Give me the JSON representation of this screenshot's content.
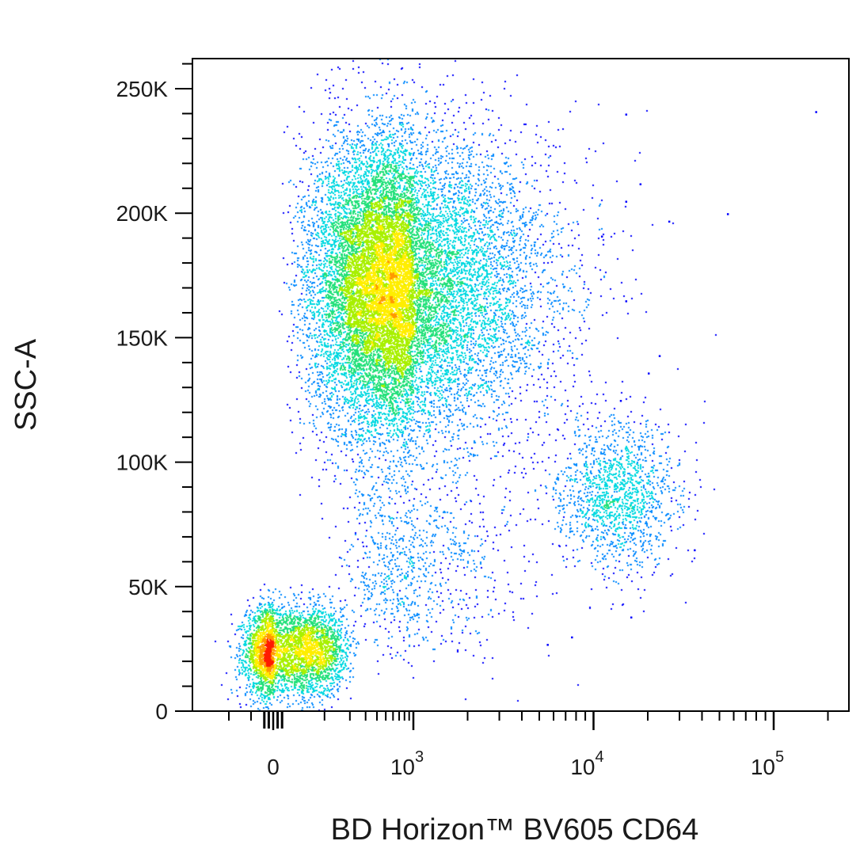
{
  "chart_data": {
    "type": "scatter",
    "style": "flow cytometry pseudocolor density dot plot",
    "title": "",
    "xlabel": "BD Horizon™ BV605 CD64",
    "ylabel": "SSC-A",
    "x_scale": "biexponential",
    "y_scale": "linear",
    "xlim": [
      -300,
      200000
    ],
    "ylim": [
      0,
      262144
    ],
    "grid": false,
    "legend": "none",
    "x_ticks": [
      {
        "value": 0,
        "base": "0",
        "exp": ""
      },
      {
        "value": 1000,
        "base": "10",
        "exp": "3"
      },
      {
        "value": 10000,
        "base": "10",
        "exp": "4"
      },
      {
        "value": 100000,
        "base": "10",
        "exp": "5"
      }
    ],
    "y_ticks": [
      {
        "value": 0,
        "label": "0"
      },
      {
        "value": 50000,
        "label": "50K"
      },
      {
        "value": 100000,
        "label": "100K"
      },
      {
        "value": 150000,
        "label": "150K"
      },
      {
        "value": 200000,
        "label": "200K"
      },
      {
        "value": 250000,
        "label": "250K"
      }
    ],
    "density_colors": [
      "#0000ff",
      "#0088ff",
      "#00d8e0",
      "#22e07a",
      "#a8f000",
      "#ffee00",
      "#ff9900",
      "#ff1a00"
    ],
    "populations": [
      {
        "id": "debris",
        "x_center": 20,
        "x_spread": 70,
        "y_center": 24000,
        "y_spread": 9000,
        "events": 4200
      },
      {
        "id": "granulocytes",
        "x_center": 600,
        "x_spread": 0.45,
        "y_center": 170000,
        "y_spread": 30000,
        "events": 16000
      },
      {
        "id": "monocytes",
        "x_center": 13500,
        "x_spread": 0.17,
        "y_center": 87000,
        "y_spread": 15000,
        "events": 1500
      },
      {
        "id": "scatter-band",
        "x_center": 900,
        "x_spread": 0.35,
        "y_center": 60000,
        "y_spread": 20000,
        "events": 900
      }
    ],
    "outlier_points": [
      {
        "x": 15000,
        "y": 240000
      },
      {
        "x": 170000,
        "y": 241000
      },
      {
        "x": 55000,
        "y": 200000
      },
      {
        "x": 26000,
        "y": 197000
      },
      {
        "x": 18000,
        "y": 212000
      },
      {
        "x": 15000,
        "y": 205000
      },
      {
        "x": 11000,
        "y": 191000
      },
      {
        "x": 36000,
        "y": 65000
      },
      {
        "x": 16000,
        "y": 38000
      },
      {
        "x": 7500,
        "y": 30000
      },
      {
        "x": 5500,
        "y": 27000
      },
      {
        "x": 15000,
        "y": 165000
      },
      {
        "x": 23000,
        "y": 143000
      },
      {
        "x": 20000,
        "y": 136000
      },
      {
        "x": 14000,
        "y": 125000
      }
    ]
  }
}
